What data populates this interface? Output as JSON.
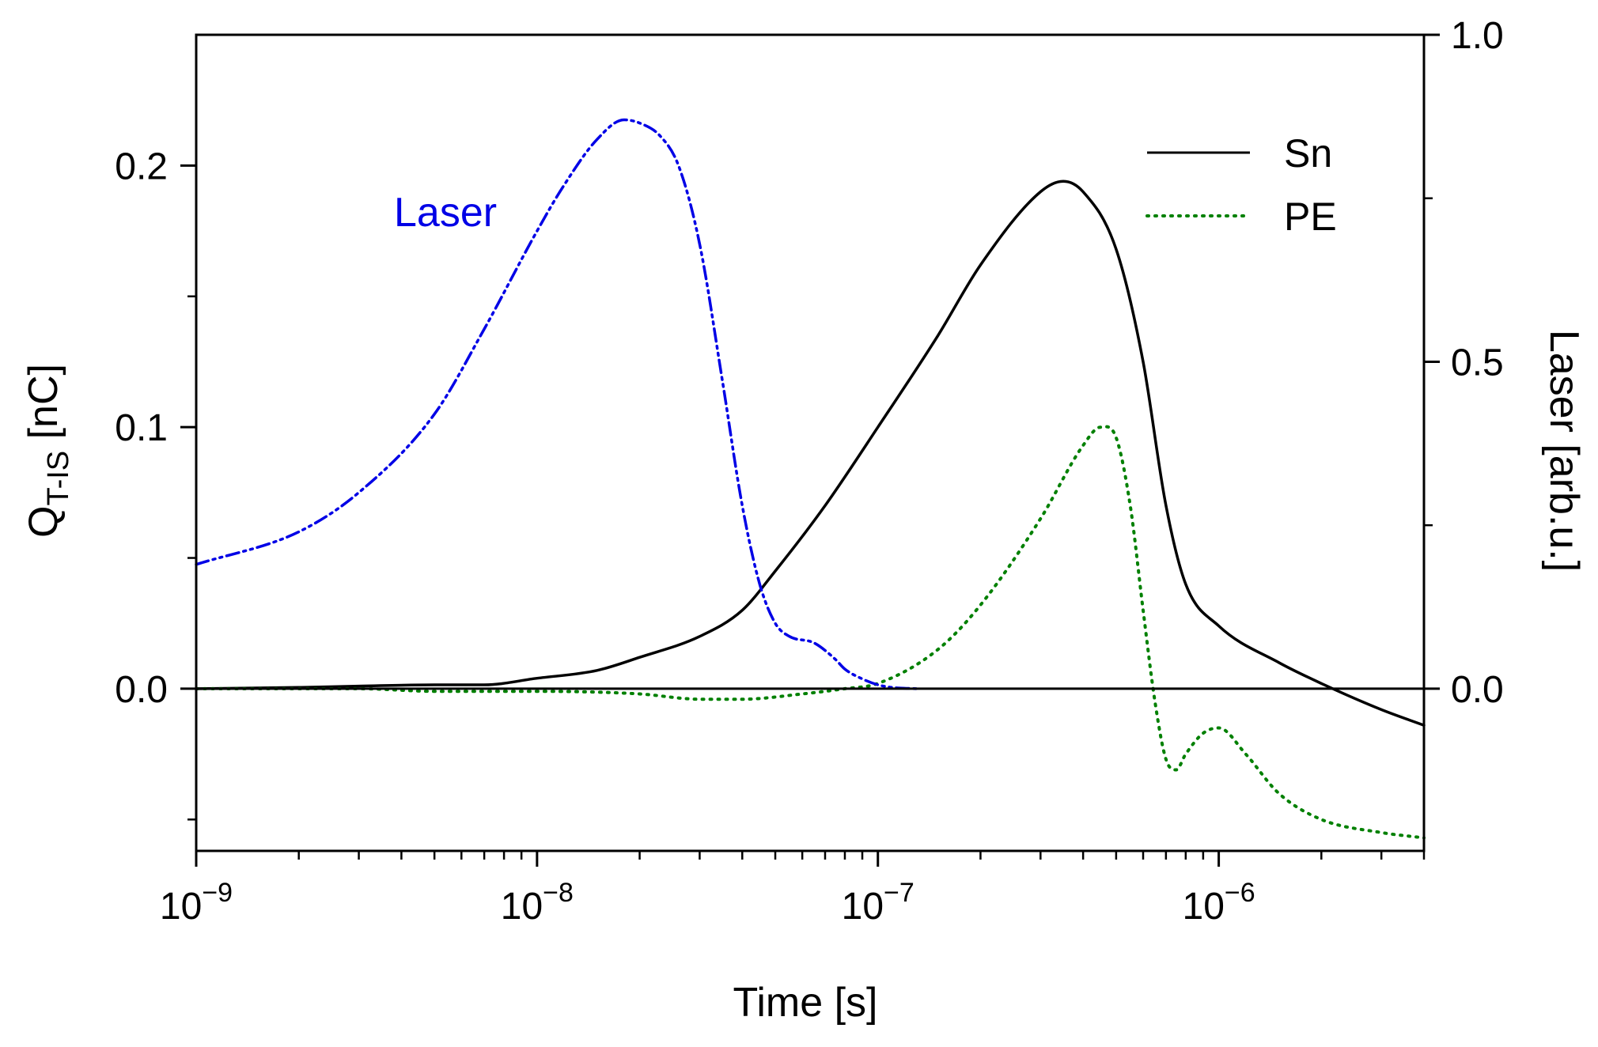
{
  "chart_data": {
    "type": "line",
    "xlabel": "Time [s]",
    "x_scale": "log",
    "xlim": [
      1e-09,
      4e-06
    ],
    "x_ticks": [
      {
        "value": 1e-09,
        "base": "10",
        "exp": "−9"
      },
      {
        "value": 1e-08,
        "base": "10",
        "exp": "−8"
      },
      {
        "value": 1e-07,
        "base": "10",
        "exp": "−7"
      },
      {
        "value": 1e-06,
        "base": "10",
        "exp": "−6"
      }
    ],
    "y_left": {
      "label_main": "Q",
      "label_sub": "T-IS",
      "label_unit": " [nC]",
      "ylim": [
        -0.062,
        0.25
      ],
      "ticks": [
        {
          "value": 0.0,
          "label": "0.0"
        },
        {
          "value": 0.1,
          "label": "0.1"
        },
        {
          "value": 0.2,
          "label": "0.2"
        }
      ],
      "minor_ticks": [
        -0.05,
        0.05,
        0.15
      ]
    },
    "y_right": {
      "label": "Laser [arb.u.]",
      "ylim": [
        -0.248,
        1.0
      ],
      "ticks": [
        {
          "value": 0.0,
          "label": "0.0"
        },
        {
          "value": 0.5,
          "label": "0.5"
        },
        {
          "value": 1.0,
          "label": "1.0"
        }
      ],
      "minor_ticks": [
        0.25,
        0.75
      ]
    },
    "zero_line": 0,
    "annotation": {
      "text": "Laser",
      "color": "#0000e6"
    },
    "legend": {
      "position": "top-right",
      "entries": [
        "Sn",
        "PE"
      ]
    },
    "series": [
      {
        "name": "Sn",
        "axis": "left",
        "color": "#000000",
        "style": "solid",
        "x": [
          1e-09,
          2e-09,
          3e-09,
          5e-09,
          7e-09,
          1e-08,
          1.5e-08,
          2e-08,
          3e-08,
          4e-08,
          5e-08,
          7e-08,
          1e-07,
          1.5e-07,
          2e-07,
          3e-07,
          3.5e-07,
          4e-07,
          5e-07,
          6e-07,
          7e-07,
          8e-07,
          1e-06,
          1.5e-06,
          2e-06,
          3e-06,
          4e-06
        ],
        "values": [
          0.0,
          0.0005,
          0.001,
          0.0015,
          0.0015,
          0.004,
          0.007,
          0.012,
          0.02,
          0.03,
          0.045,
          0.07,
          0.1,
          0.135,
          0.162,
          0.19,
          0.194,
          0.19,
          0.168,
          0.125,
          0.07,
          0.04,
          0.024,
          0.01,
          0.002,
          -0.008,
          -0.014
        ]
      },
      {
        "name": "PE",
        "axis": "left",
        "color": "#008000",
        "style": "dotted",
        "x": [
          1e-09,
          3e-09,
          5e-09,
          1e-08,
          2e-08,
          3e-08,
          4e-08,
          6e-08,
          8e-08,
          1e-07,
          1.5e-07,
          2e-07,
          3e-07,
          4e-07,
          4.5e-07,
          5e-07,
          5.5e-07,
          6e-07,
          6.5e-07,
          7e-07,
          7.5e-07,
          8e-07,
          9e-07,
          1e-06,
          1.2e-06,
          1.5e-06,
          2e-06,
          3e-06,
          4e-06
        ],
        "values": [
          0.0,
          0.0,
          -0.001,
          -0.001,
          -0.002,
          -0.004,
          -0.004,
          -0.002,
          0.0,
          0.002,
          0.015,
          0.032,
          0.065,
          0.093,
          0.1,
          0.096,
          0.07,
          0.03,
          -0.005,
          -0.027,
          -0.031,
          -0.025,
          -0.017,
          -0.015,
          -0.025,
          -0.04,
          -0.05,
          -0.055,
          -0.057
        ]
      },
      {
        "name": "Laser",
        "axis": "right",
        "color": "#0000e6",
        "style": "dashdotdot",
        "x": [
          1e-09,
          2e-09,
          3e-09,
          5e-09,
          7e-09,
          1e-08,
          1.2e-08,
          1.5e-08,
          1.8e-08,
          2e-08,
          2.3e-08,
          2.6e-08,
          3e-08,
          3.5e-08,
          4e-08,
          4.5e-08,
          5e-08,
          5.5e-08,
          6.5e-08,
          7.5e-08,
          8e-08,
          9e-08,
          1e-07,
          1.1e-07,
          1.3e-07
        ],
        "values": [
          0.19,
          0.24,
          0.3,
          0.42,
          0.55,
          0.7,
          0.77,
          0.84,
          0.87,
          0.865,
          0.845,
          0.8,
          0.68,
          0.47,
          0.28,
          0.16,
          0.1,
          0.08,
          0.07,
          0.045,
          0.03,
          0.015,
          0.006,
          0.002,
          0.0
        ]
      }
    ]
  }
}
